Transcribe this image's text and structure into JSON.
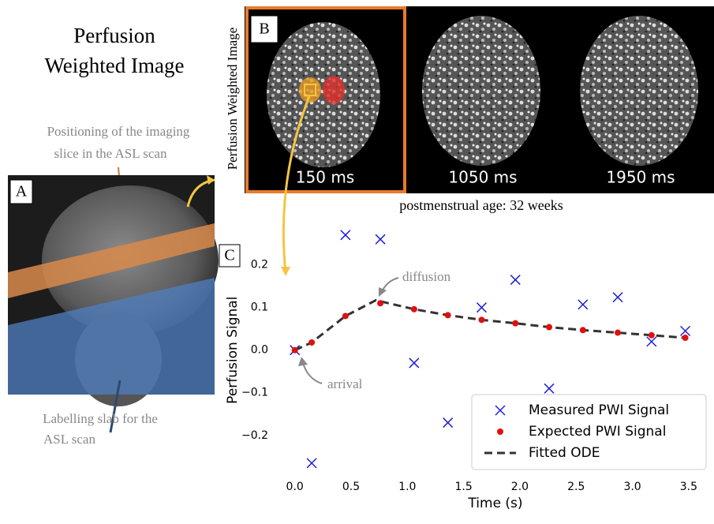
{
  "title_lines": [
    "Perfusion",
    "Weighted Image"
  ],
  "panel_a": {
    "label": "A",
    "slice_note_lines": [
      "Positioning of the imaging",
      "slice in the ASL scan"
    ],
    "slab_note_lines": [
      "Labelling slab for the",
      "ASL scan"
    ]
  },
  "panel_b": {
    "label": "B",
    "y_label": "Perfusion Weighted Image",
    "frames": [
      "150 ms",
      "1050 ms",
      "1950 ms"
    ],
    "caption": "postmenstrual age: 32 weeks"
  },
  "chart_data": {
    "type": "scatter",
    "panel_label": "C",
    "x_label": "Time (s)",
    "y_label": "Perfusion Signal",
    "annotations": [
      "diffusion",
      "arrival"
    ],
    "legend": "lower right",
    "grid": false,
    "xlim": [
      -0.11,
      3.62
    ],
    "ylim": [
      -0.28,
      0.29
    ],
    "xticks": [
      {
        "value": 0,
        "label": "0.0"
      },
      {
        "value": 0.5,
        "label": "0.5"
      },
      {
        "value": 1,
        "label": "1.0"
      },
      {
        "value": 1.5,
        "label": "1.5"
      },
      {
        "value": 2,
        "label": "2.0"
      },
      {
        "value": 2.5,
        "label": "2.5"
      },
      {
        "value": 3,
        "label": "3.0"
      },
      {
        "value": 3.5,
        "label": "3.5"
      }
    ],
    "yticks": [
      {
        "value": -0.2,
        "label": "−0.2"
      },
      {
        "value": -0.1,
        "label": "−0.1"
      },
      {
        "value": 0,
        "label": "0.0"
      },
      {
        "value": 0.1,
        "label": "0.1"
      },
      {
        "value": 0.2,
        "label": "0.2"
      }
    ],
    "series": [
      {
        "name": "Measured PWI Signal",
        "color": "#1f1fd8",
        "marker": "x",
        "x": [
          0,
          0.15,
          0.45,
          0.76,
          1.06,
          1.36,
          1.66,
          1.96,
          2.26,
          2.56,
          2.87,
          3.17,
          3.47
        ],
        "values": [
          0,
          -0.265,
          0.27,
          0.26,
          -0.03,
          -0.17,
          0.1,
          0.165,
          -0.09,
          0.107,
          0.124,
          0.02,
          0.045
        ]
      },
      {
        "name": "Expected PWI Signal",
        "color": "#e01010",
        "marker": "o",
        "x": [
          0,
          0.15,
          0.45,
          0.76,
          1.06,
          1.36,
          1.66,
          1.96,
          2.26,
          2.56,
          2.87,
          3.17,
          3.47
        ],
        "values": [
          0,
          0.018,
          0.08,
          0.11,
          0.096,
          0.082,
          0.071,
          0.063,
          0.054,
          0.047,
          0.041,
          0.035,
          0.029
        ]
      },
      {
        "name": "Fitted ODE",
        "color": "#333333",
        "marker": "dashed",
        "x": [
          0,
          0.15,
          0.45,
          0.72,
          1.06,
          1.36,
          1.66,
          1.96,
          2.26,
          2.56,
          2.87,
          3.17,
          3.47
        ],
        "values": [
          0,
          0.018,
          0.08,
          0.117,
          0.096,
          0.082,
          0.071,
          0.063,
          0.054,
          0.047,
          0.041,
          0.035,
          0.029
        ]
      }
    ]
  }
}
